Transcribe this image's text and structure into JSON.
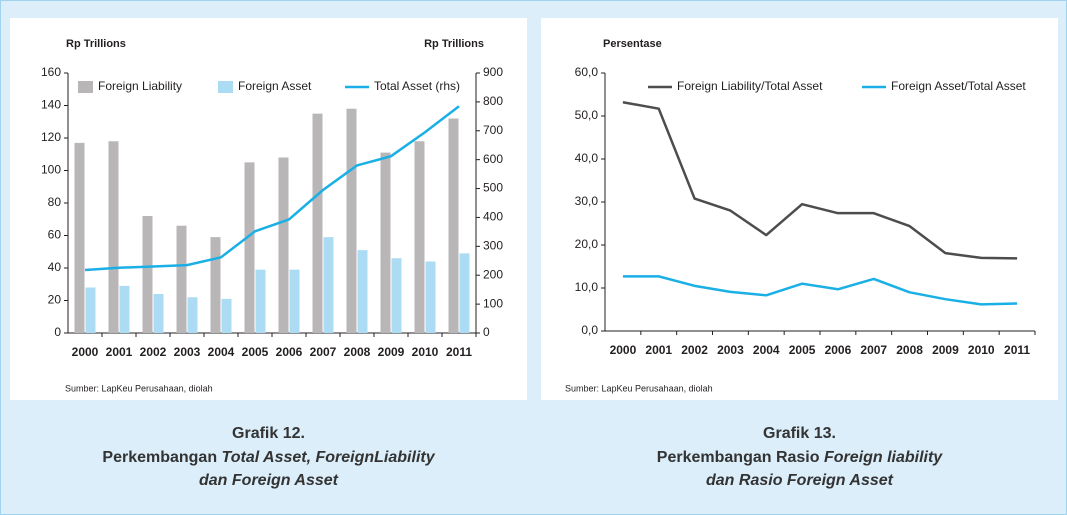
{
  "chart_data": [
    {
      "type": "bar",
      "y_label": "Rp Trillions",
      "y2_label": "Rp Trillions",
      "categories": [
        "2000",
        "2001",
        "2002",
        "2003",
        "2004",
        "2005",
        "2006",
        "2007",
        "2008",
        "2009",
        "2010",
        "2011"
      ],
      "series": [
        {
          "name": "Foreign Liability",
          "color": "#b8b6b7",
          "values": [
            117,
            118,
            72,
            66,
            59,
            105,
            108,
            135,
            138,
            111,
            118,
            132
          ]
        },
        {
          "name": "Foreign Asset",
          "color": "#acdcf4",
          "values": [
            28,
            29,
            24,
            22,
            21,
            39,
            39,
            59,
            51,
            46,
            44,
            49
          ]
        },
        {
          "name": "Total Asset (rhs)",
          "type": "line",
          "axis": "y2",
          "color": "#1ab0e6",
          "values": [
            218,
            226,
            230,
            235,
            262,
            352,
            393,
            495,
            580,
            612,
            695,
            785
          ]
        }
      ],
      "ylim": [
        0,
        160
      ],
      "yticks": [
        0,
        20,
        40,
        60,
        80,
        100,
        120,
        140,
        160
      ],
      "y2lim": [
        0,
        900
      ],
      "y2ticks": [
        0,
        100,
        200,
        300,
        400,
        500,
        600,
        700,
        800,
        900
      ],
      "grid": false,
      "legend": "top",
      "source": "Sumber: LapKeu Perusahaan, diolah",
      "caption": {
        "title": "Grafik 12.",
        "lines": [
          [
            {
              "text": "Perkembangan ",
              "italic": false
            },
            {
              "text": "Total Asset, ForeignLiability",
              "italic": true
            }
          ],
          [
            {
              "text": "dan Foreign Asset",
              "italic": true
            }
          ]
        ]
      }
    },
    {
      "type": "line",
      "y_label": "Persentase",
      "categories": [
        "2000",
        "2001",
        "2002",
        "2003",
        "2004",
        "2005",
        "2006",
        "2007",
        "2008",
        "2009",
        "2010",
        "2011"
      ],
      "series": [
        {
          "name": "Foreign Liability/Total Asset",
          "color": "#4d4d4f",
          "values": [
            53.2,
            51.7,
            30.8,
            28.0,
            22.3,
            29.5,
            27.4,
            27.4,
            24.4,
            18.1,
            17.0,
            16.9
          ]
        },
        {
          "name": "Foreign Asset/Total Asset",
          "color": "#1ab0e6",
          "values": [
            12.7,
            12.7,
            10.5,
            9.1,
            8.3,
            11.0,
            9.7,
            12.1,
            9.0,
            7.4,
            6.2,
            6.4
          ]
        }
      ],
      "ylim": [
        0,
        60
      ],
      "yticks": [
        {
          "value": 0,
          "label": "0,0"
        },
        {
          "value": 10,
          "label": "10,0"
        },
        {
          "value": 20,
          "label": "20,0"
        },
        {
          "value": 30,
          "label": "30,0"
        },
        {
          "value": 40,
          "label": "40,0"
        },
        {
          "value": 50,
          "label": "50,0"
        },
        {
          "value": 60,
          "label": "60,0"
        }
      ],
      "grid": false,
      "legend": "top",
      "source": "Sumber: LapKeu Perusahaan, diolah",
      "caption": {
        "title": "Grafik 13.",
        "lines": [
          [
            {
              "text": "Perkembangan Rasio ",
              "italic": false
            },
            {
              "text": "Foreign liability",
              "italic": true
            }
          ],
          [
            {
              "text": "dan Rasio Foreign Asset",
              "italic": true
            }
          ]
        ]
      }
    }
  ]
}
